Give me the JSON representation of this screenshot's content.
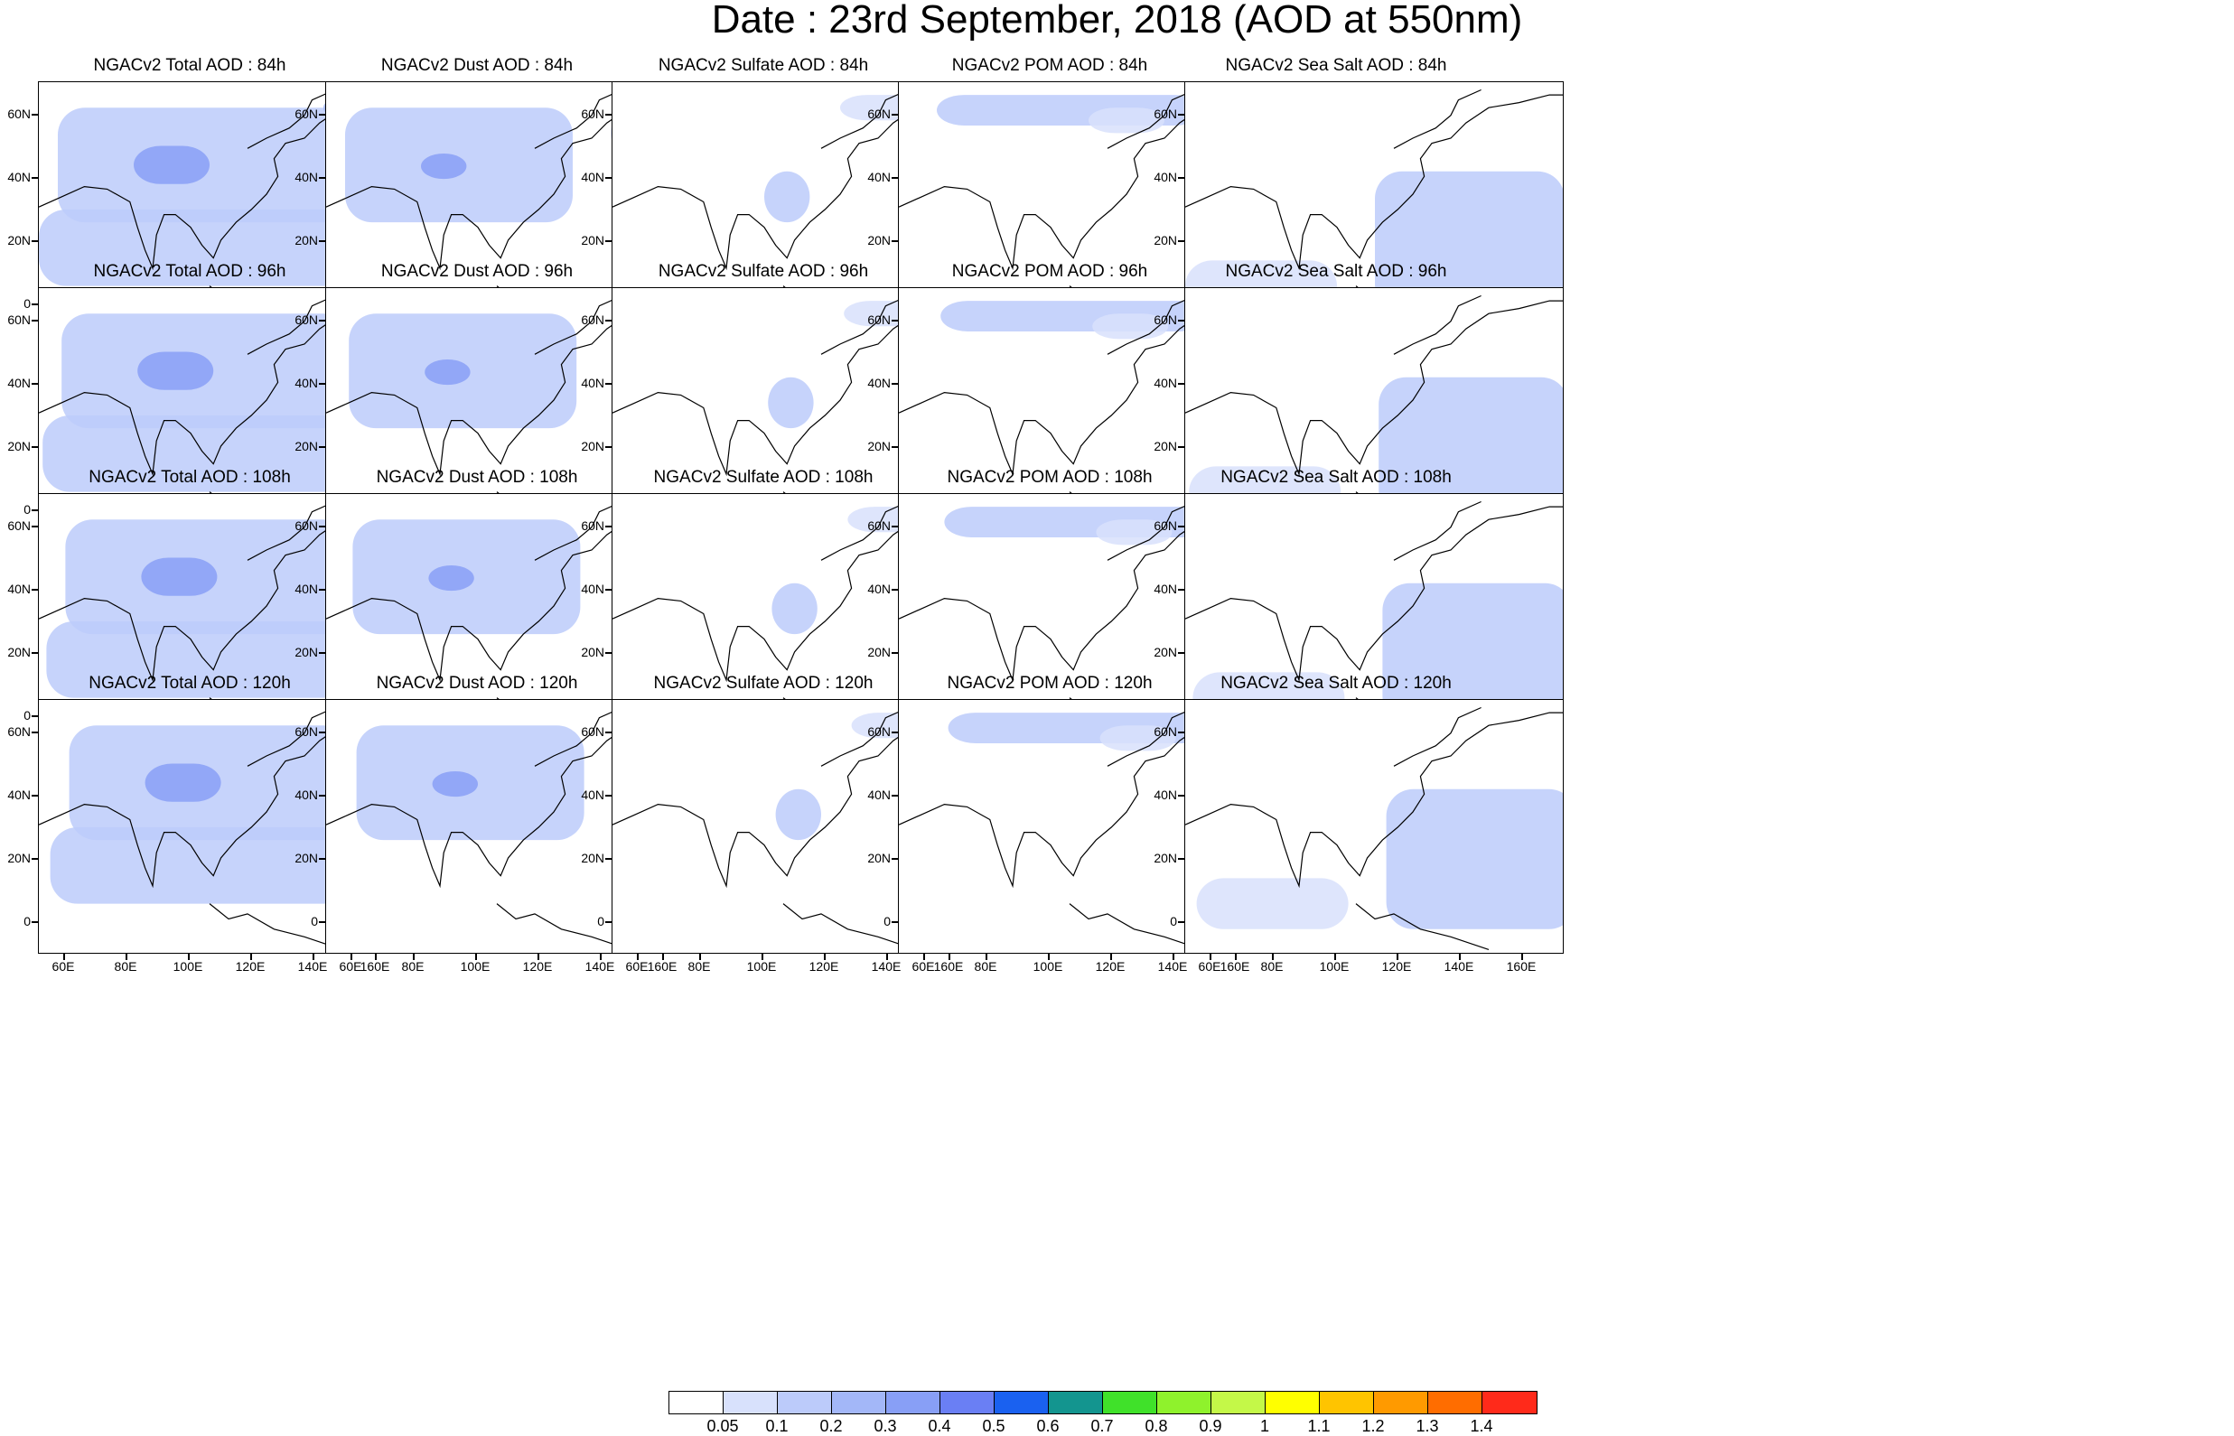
{
  "title": "Date : 23rd September, 2018 (AOD at 550nm)",
  "panels": [
    [
      "NGACv2 Total AOD : 84h",
      "NGACv2 Dust AOD : 84h",
      "NGACv2 Sulfate AOD : 84h",
      "NGACv2 POM AOD : 84h",
      "NGACv2 Sea Salt AOD : 84h"
    ],
    [
      "NGACv2 Total AOD : 96h",
      "NGACv2 Dust AOD : 96h",
      "NGACv2 Sulfate AOD : 96h",
      "NGACv2 POM AOD : 96h",
      "NGACv2 Sea Salt AOD : 96h"
    ],
    [
      "NGACv2 Total AOD : 108h",
      "NGACv2 Dust AOD : 108h",
      "NGACv2 Sulfate AOD : 108h",
      "NGACv2 POM AOD : 108h",
      "NGACv2 Sea Salt AOD : 108h"
    ],
    [
      "NGACv2 Total AOD : 120h",
      "NGACv2 Dust AOD : 120h",
      "NGACv2 Sulfate AOD : 120h",
      "NGACv2 POM AOD : 120h",
      "NGACv2 Sea Salt  AOD : 120h"
    ]
  ],
  "axes": {
    "lat_ticks": [
      "60N",
      "40N",
      "20N",
      "0"
    ],
    "lon_ticks": [
      "60E",
      "80E",
      "100E",
      "120E",
      "140E",
      "160E"
    ]
  },
  "colorbar": {
    "labels": [
      "0.05",
      "0.1",
      "0.2",
      "0.3",
      "0.4",
      "0.5",
      "0.6",
      "0.7",
      "0.8",
      "0.9",
      "1",
      "1.1",
      "1.2",
      "1.3",
      "1.4"
    ],
    "colors": [
      "#ffffff",
      "#d8e1fc",
      "#bccbfa",
      "#a3b7f8",
      "#889ff6",
      "#6a7ff4",
      "#1a61f0",
      "#13958f",
      "#40e12a",
      "#8ff22c",
      "#c4f848",
      "#ffff00",
      "#ffc400",
      "#ff9a00",
      "#ff6d00",
      "#ff2a1a"
    ]
  }
}
